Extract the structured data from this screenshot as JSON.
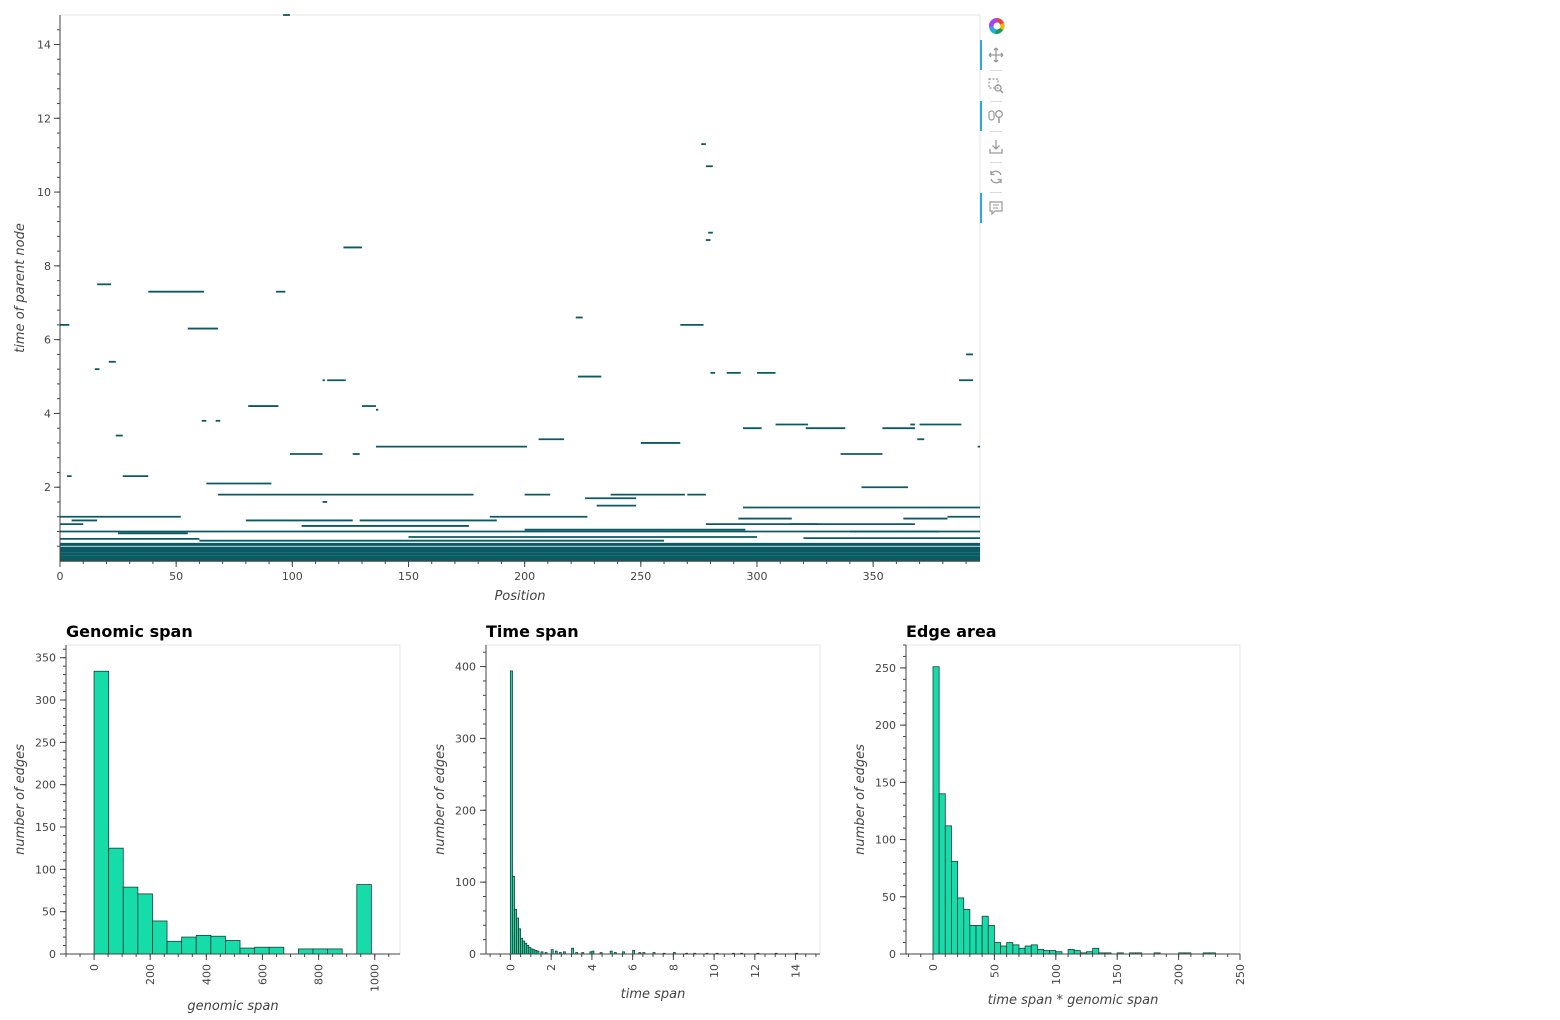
{
  "colors": {
    "edge": "#0b5a63",
    "bar_fill": "#16dca9",
    "bar_stroke": "#1a3d38",
    "frame": "#e5e5e5",
    "axis": "#444444",
    "tool_active": "#26aae1"
  },
  "toolbar": {
    "tools": [
      {
        "name": "bokeh-logo-icon",
        "active": false
      },
      {
        "name": "pan-icon",
        "active": true
      },
      {
        "name": "box-zoom-icon",
        "active": false
      },
      {
        "name": "wheel-zoom-icon",
        "active": true
      },
      {
        "name": "save-icon",
        "active": false
      },
      {
        "name": "reset-icon",
        "active": false
      },
      {
        "name": "hover-icon",
        "active": true
      }
    ]
  },
  "chart_data": [
    {
      "type": "edges",
      "title": "",
      "xlabel": "Position",
      "ylabel": "time of parent node",
      "xlim": [
        0,
        396
      ],
      "ylim": [
        0,
        14.8
      ],
      "x_ticks": [
        "0",
        "50",
        "100",
        "150",
        "200",
        "250",
        "300",
        "350"
      ],
      "y_ticks": [
        "2",
        "4",
        "6",
        "8",
        "10",
        "12",
        "14"
      ],
      "edges": [
        [
          96,
          99,
          14.8
        ],
        [
          276,
          278,
          11.3
        ],
        [
          278,
          281,
          10.7
        ],
        [
          279,
          281,
          8.9
        ],
        [
          278,
          280,
          8.7
        ],
        [
          122,
          130,
          8.5
        ],
        [
          16,
          22,
          7.5
        ],
        [
          38,
          62,
          7.3
        ],
        [
          93,
          97,
          7.3
        ],
        [
          0,
          4,
          6.4
        ],
        [
          55,
          68,
          6.3
        ],
        [
          222,
          225,
          6.6
        ],
        [
          267,
          277,
          6.4
        ],
        [
          21,
          24,
          5.4
        ],
        [
          15,
          17,
          5.2
        ],
        [
          390,
          393,
          5.6
        ],
        [
          223,
          233,
          5.0
        ],
        [
          280,
          282,
          5.1
        ],
        [
          287,
          293,
          5.1
        ],
        [
          300,
          308,
          5.1
        ],
        [
          113,
          114,
          4.9
        ],
        [
          115,
          123,
          4.9
        ],
        [
          387,
          393,
          4.9
        ],
        [
          81,
          94,
          4.2
        ],
        [
          130,
          136,
          4.2
        ],
        [
          136,
          137,
          4.1
        ],
        [
          61,
          63,
          3.8
        ],
        [
          67,
          69,
          3.8
        ],
        [
          294,
          302,
          3.6
        ],
        [
          308,
          322,
          3.7
        ],
        [
          321,
          338,
          3.6
        ],
        [
          354,
          368,
          3.6
        ],
        [
          366,
          368,
          3.7
        ],
        [
          370,
          388,
          3.7
        ],
        [
          24,
          27,
          3.4
        ],
        [
          206,
          217,
          3.3
        ],
        [
          250,
          267,
          3.2
        ],
        [
          369,
          372,
          3.3
        ],
        [
          136,
          201,
          3.1
        ],
        [
          395,
          396,
          3.1
        ],
        [
          99,
          113,
          2.9
        ],
        [
          126,
          129,
          2.9
        ],
        [
          336,
          354,
          2.9
        ],
        [
          3,
          5,
          2.3
        ],
        [
          27,
          38,
          2.3
        ],
        [
          63,
          91,
          2.1
        ],
        [
          345,
          365,
          2.0
        ],
        [
          200,
          211,
          1.8
        ],
        [
          68,
          178,
          1.8
        ],
        [
          237,
          269,
          1.8
        ],
        [
          270,
          278,
          1.8
        ],
        [
          226,
          248,
          1.7
        ],
        [
          113,
          115,
          1.6
        ],
        [
          231,
          248,
          1.5
        ],
        [
          294,
          396,
          1.45
        ],
        [
          0,
          52,
          1.2
        ],
        [
          5,
          16,
          1.1
        ],
        [
          80,
          126,
          1.1
        ],
        [
          129,
          188,
          1.1
        ],
        [
          185,
          227,
          1.2
        ],
        [
          292,
          315,
          1.15
        ],
        [
          363,
          382,
          1.15
        ],
        [
          382,
          396,
          1.2
        ],
        [
          0,
          10,
          1.0
        ],
        [
          104,
          176,
          0.95
        ],
        [
          278,
          326,
          1.0
        ],
        [
          314,
          368,
          1.0
        ],
        [
          0,
          396,
          0.8
        ],
        [
          25,
          55,
          0.75
        ],
        [
          200,
          295,
          0.85
        ],
        [
          340,
          378,
          0.8
        ],
        [
          0,
          60,
          0.6
        ],
        [
          60,
          260,
          0.55
        ],
        [
          150,
          300,
          0.65
        ],
        [
          320,
          396,
          0.62
        ],
        [
          0,
          396,
          0.45
        ],
        [
          0,
          396,
          0.35
        ],
        [
          0,
          396,
          0.28
        ],
        [
          0,
          396,
          0.2
        ],
        [
          0,
          396,
          0.12
        ],
        [
          0,
          396,
          0.05
        ],
        [
          0,
          396,
          0.02
        ]
      ]
    },
    {
      "type": "bar",
      "title": "Genomic span",
      "xlabel": "genomic span",
      "ylabel": "number of edges",
      "xlim": [
        -100,
        1090
      ],
      "ylim": [
        0,
        365
      ],
      "x_ticks": [
        "0",
        "200",
        "400",
        "600",
        "800",
        "1000"
      ],
      "y_ticks": [
        "0",
        "50",
        "100",
        "150",
        "200",
        "250",
        "300",
        "350"
      ],
      "bin_width": 52,
      "bins": [
        [
          0,
          334
        ],
        [
          52,
          125
        ],
        [
          104,
          79
        ],
        [
          156,
          71
        ],
        [
          208,
          39
        ],
        [
          260,
          15
        ],
        [
          312,
          20
        ],
        [
          364,
          22
        ],
        [
          416,
          21
        ],
        [
          468,
          16
        ],
        [
          520,
          7
        ],
        [
          572,
          8
        ],
        [
          624,
          8
        ],
        [
          676,
          0
        ],
        [
          728,
          6
        ],
        [
          780,
          6
        ],
        [
          832,
          6
        ],
        [
          884,
          0
        ],
        [
          936,
          82
        ]
      ]
    },
    {
      "type": "bar",
      "title": "Time span",
      "xlabel": "time span",
      "ylabel": "number of edges",
      "xlim": [
        -1.2,
        15.2
      ],
      "ylim": [
        0,
        430
      ],
      "x_ticks": [
        "0",
        "2",
        "4",
        "6",
        "8",
        "10",
        "12",
        "14"
      ],
      "y_ticks": [
        "0",
        "100",
        "200",
        "300",
        "400"
      ],
      "bin_width": 0.1,
      "bins": [
        [
          0.0,
          394
        ],
        [
          0.1,
          108
        ],
        [
          0.2,
          62
        ],
        [
          0.3,
          50
        ],
        [
          0.4,
          35
        ],
        [
          0.5,
          22
        ],
        [
          0.6,
          18
        ],
        [
          0.7,
          15
        ],
        [
          0.8,
          12
        ],
        [
          0.9,
          9
        ],
        [
          1.0,
          7
        ],
        [
          1.1,
          6
        ],
        [
          1.2,
          5
        ],
        [
          1.3,
          4
        ],
        [
          1.5,
          3
        ],
        [
          1.7,
          2
        ],
        [
          2.0,
          6
        ],
        [
          2.2,
          4
        ],
        [
          2.4,
          2
        ],
        [
          2.6,
          3
        ],
        [
          3.0,
          8
        ],
        [
          3.2,
          2
        ],
        [
          3.5,
          2
        ],
        [
          3.9,
          3
        ],
        [
          4.0,
          4
        ],
        [
          4.4,
          2
        ],
        [
          4.9,
          4
        ],
        [
          5.1,
          2
        ],
        [
          5.5,
          3
        ],
        [
          6.0,
          5
        ],
        [
          6.3,
          2
        ],
        [
          6.5,
          2
        ],
        [
          7.0,
          2
        ],
        [
          7.5,
          1
        ],
        [
          8.0,
          2
        ],
        [
          8.6,
          1
        ],
        [
          9.0,
          1
        ],
        [
          9.6,
          1
        ],
        [
          10.1,
          1
        ],
        [
          10.9,
          1
        ],
        [
          11.3,
          1
        ],
        [
          12.1,
          1
        ],
        [
          13.0,
          1
        ],
        [
          14.0,
          1
        ]
      ]
    },
    {
      "type": "bar",
      "title": "Edge area",
      "xlabel": "time span * genomic span",
      "ylabel": "number of edges",
      "xlim": [
        -22,
        250
      ],
      "ylim": [
        0,
        270
      ],
      "x_ticks": [
        "0",
        "50",
        "100",
        "150",
        "200",
        "250"
      ],
      "y_ticks": [
        "0",
        "50",
        "100",
        "150",
        "200",
        "250"
      ],
      "bin_width": 5,
      "bins": [
        [
          0,
          251
        ],
        [
          5,
          140
        ],
        [
          10,
          112
        ],
        [
          15,
          81
        ],
        [
          20,
          49
        ],
        [
          25,
          39
        ],
        [
          30,
          25
        ],
        [
          35,
          25
        ],
        [
          40,
          33
        ],
        [
          45,
          25
        ],
        [
          50,
          10
        ],
        [
          55,
          7
        ],
        [
          60,
          10
        ],
        [
          65,
          8
        ],
        [
          70,
          5
        ],
        [
          75,
          7
        ],
        [
          80,
          8
        ],
        [
          85,
          4
        ],
        [
          90,
          3
        ],
        [
          95,
          3
        ],
        [
          100,
          2
        ],
        [
          110,
          4
        ],
        [
          115,
          3
        ],
        [
          120,
          1
        ],
        [
          125,
          2
        ],
        [
          130,
          5
        ],
        [
          135,
          1
        ],
        [
          140,
          1
        ],
        [
          150,
          1
        ],
        [
          160,
          1
        ],
        [
          165,
          1
        ],
        [
          180,
          1
        ],
        [
          200,
          1
        ],
        [
          205,
          1
        ],
        [
          220,
          1
        ],
        [
          225,
          1
        ]
      ]
    }
  ]
}
